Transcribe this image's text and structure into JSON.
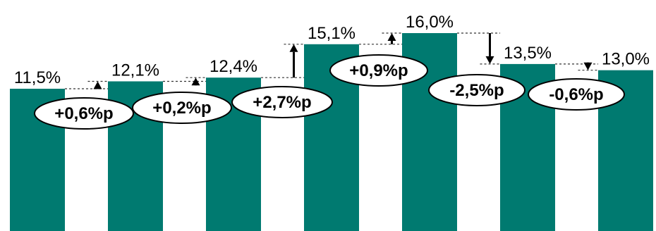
{
  "chart_data": {
    "type": "bar",
    "values": [
      11.5,
      12.1,
      12.4,
      15.1,
      16.0,
      13.5,
      13.0
    ],
    "value_labels": [
      "11,5%",
      "12,1%",
      "12,4%",
      "15,1%",
      "16,0%",
      "13,5%",
      "13,0%"
    ],
    "ylim": [
      0,
      16.0
    ],
    "grid": false,
    "legend": "none",
    "bar_color": "#007A70",
    "changes": [
      {
        "label": "+0,6%p",
        "direction": "up"
      },
      {
        "label": "+0,2%p",
        "direction": "up"
      },
      {
        "label": "+2,7%p",
        "direction": "up"
      },
      {
        "label": "+0,9%p",
        "direction": "up"
      },
      {
        "label": "-2,5%p",
        "direction": "down"
      },
      {
        "label": "-0,6%p",
        "direction": "down"
      }
    ]
  }
}
